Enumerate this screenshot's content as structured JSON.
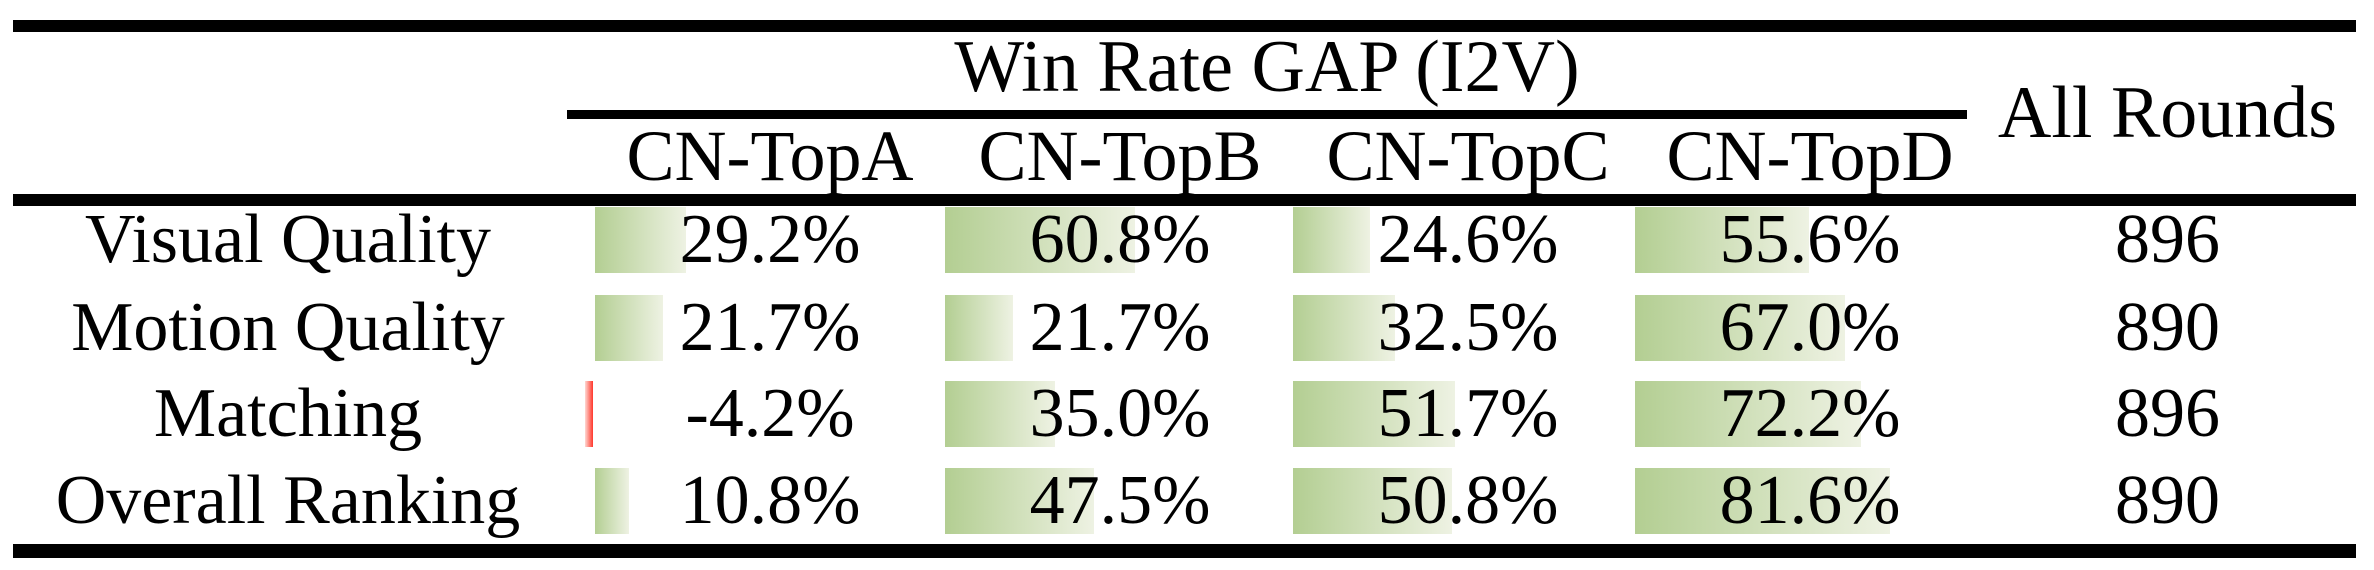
{
  "table": {
    "group_header": "Win Rate GAP (I2V)",
    "all_rounds_header": "All Rounds",
    "columns": [
      "CN-TopA",
      "CN-TopB",
      "CN-TopC",
      "CN-TopD"
    ],
    "rows": [
      {
        "metric": "Visual Quality",
        "values": [
          29.2,
          60.8,
          24.6,
          55.6
        ],
        "display": [
          "29.2%",
          "60.8%",
          "24.6%",
          "55.6%"
        ],
        "all_rounds": "896"
      },
      {
        "metric": "Motion Quality",
        "values": [
          21.7,
          21.7,
          32.5,
          67.0
        ],
        "display": [
          "21.7%",
          "21.7%",
          "32.5%",
          "67.0%"
        ],
        "all_rounds": "890"
      },
      {
        "metric": "Matching",
        "values": [
          -4.2,
          35.0,
          51.7,
          72.2
        ],
        "display": [
          "-4.2%",
          "35.0%",
          "51.7%",
          "72.2%"
        ],
        "all_rounds": "896"
      },
      {
        "metric": "Overall Ranking",
        "values": [
          10.8,
          47.5,
          50.8,
          81.6
        ],
        "display": [
          "10.8%",
          "47.5%",
          "50.8%",
          "81.6%"
        ],
        "all_rounds": "890"
      }
    ]
  },
  "colors": {
    "bar_positive": "#b3ce92",
    "bar_positive_fade": "#eef2e3",
    "bar_negative": "#ff372b",
    "bar_negative_fade": "#ffd8d3",
    "rule": "#000000"
  },
  "chart_data": {
    "type": "table",
    "title": "Win Rate GAP (I2V)",
    "columns": [
      "CN-TopA",
      "CN-TopB",
      "CN-TopC",
      "CN-TopD",
      "All Rounds"
    ],
    "rows": [
      {
        "metric": "Visual Quality",
        "win_rate_gap_percent": [
          29.2,
          60.8,
          24.6,
          55.6
        ],
        "all_rounds": 896
      },
      {
        "metric": "Motion Quality",
        "win_rate_gap_percent": [
          21.7,
          21.7,
          32.5,
          67.0
        ],
        "all_rounds": 890
      },
      {
        "metric": "Matching",
        "win_rate_gap_percent": [
          -4.2,
          35.0,
          51.7,
          72.2
        ],
        "all_rounds": 896
      },
      {
        "metric": "Overall Ranking",
        "win_rate_gap_percent": [
          10.8,
          47.5,
          50.8,
          81.6
        ],
        "all_rounds": 890
      }
    ],
    "notes": "Green data bars are proportional to positive win-rate gap; negative value shown with thin red bar."
  }
}
